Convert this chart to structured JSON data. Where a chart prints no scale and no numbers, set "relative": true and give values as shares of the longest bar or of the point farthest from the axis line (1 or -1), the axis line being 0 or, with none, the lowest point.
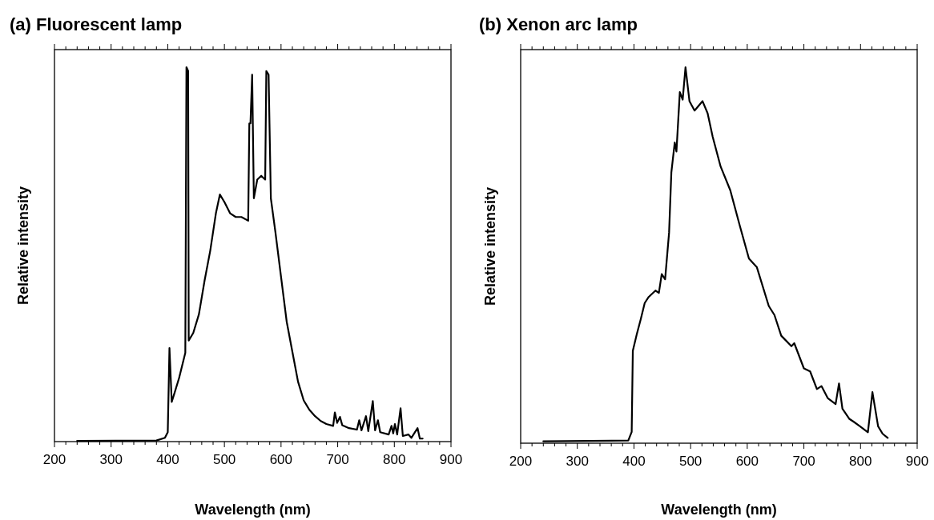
{
  "chart_data": [
    {
      "type": "line",
      "title": "(a) Fluorescent lamp",
      "xlabel": "Wavelength (nm)",
      "ylabel": "Relative intensity",
      "relative": true,
      "xlim": [
        200,
        900
      ],
      "xticks": [
        200,
        {
          "value": 220,
          "label": null
        },
        {
          "value": 240,
          "label": null
        },
        {
          "value": 260,
          "label": null
        },
        {
          "value": 280,
          "label": null
        },
        300,
        {
          "value": 320,
          "label": null
        },
        {
          "value": 340,
          "label": null
        },
        {
          "value": 360,
          "label": null
        },
        {
          "value": 380,
          "label": null
        },
        400,
        {
          "value": 420,
          "label": null
        },
        {
          "value": 440,
          "label": null
        },
        {
          "value": 460,
          "label": null
        },
        {
          "value": 480,
          "label": null
        },
        500,
        {
          "value": 520,
          "label": null
        },
        {
          "value": 540,
          "label": null
        },
        {
          "value": 560,
          "label": null
        },
        {
          "value": 580,
          "label": null
        },
        600,
        {
          "value": 620,
          "label": null
        },
        {
          "value": 640,
          "label": null
        },
        {
          "value": 660,
          "label": null
        },
        {
          "value": 680,
          "label": null
        },
        700,
        {
          "value": 720,
          "label": null
        },
        {
          "value": 740,
          "label": null
        },
        {
          "value": 760,
          "label": null
        },
        {
          "value": 780,
          "label": null
        },
        800,
        {
          "value": 820,
          "label": null
        },
        {
          "value": 840,
          "label": null
        },
        {
          "value": 860,
          "label": null
        },
        {
          "value": 880,
          "label": null
        },
        900
      ],
      "series": [
        {
          "color": "#000000",
          "x": [
            240,
            380,
            395,
            400,
            403,
            407,
            412,
            420,
            431,
            433,
            436,
            437,
            445,
            455,
            465,
            475,
            485,
            492,
            500,
            510,
            520,
            530,
            542,
            544,
            546,
            549,
            552,
            558,
            565,
            572,
            574,
            578,
            582,
            590,
            600,
            610,
            620,
            630,
            640,
            650,
            660,
            670,
            680,
            692,
            695,
            699,
            704,
            708,
            720,
            734,
            738,
            742,
            750,
            754,
            762,
            766,
            771,
            775,
            790,
            795,
            798,
            801,
            805,
            811,
            815,
            825,
            830,
            841,
            845,
            850
          ],
          "values": [
            0.002,
            0.003,
            0.01,
            0.025,
            0.25,
            0.106,
            0.13,
            0.17,
            0.237,
            1.0,
            0.99,
            0.27,
            0.29,
            0.34,
            0.43,
            0.51,
            0.61,
            0.66,
            0.64,
            0.61,
            0.6,
            0.6,
            0.59,
            0.85,
            0.85,
            0.98,
            0.65,
            0.7,
            0.71,
            0.7,
            0.99,
            0.98,
            0.65,
            0.56,
            0.44,
            0.32,
            0.24,
            0.16,
            0.11,
            0.085,
            0.068,
            0.055,
            0.047,
            0.042,
            0.078,
            0.05,
            0.066,
            0.044,
            0.036,
            0.032,
            0.057,
            0.03,
            0.068,
            0.028,
            0.108,
            0.03,
            0.057,
            0.025,
            0.019,
            0.042,
            0.022,
            0.047,
            0.019,
            0.089,
            0.015,
            0.019,
            0.01,
            0.036,
            0.008,
            0.008
          ]
        }
      ]
    },
    {
      "type": "line",
      "title": "(b) Xenon arc lamp",
      "xlabel": "Wavelength (nm)",
      "ylabel": "Relative intensity",
      "relative": true,
      "xlim": [
        200,
        900
      ],
      "xticks": [
        200,
        {
          "value": 220,
          "label": null
        },
        {
          "value": 240,
          "label": null
        },
        {
          "value": 260,
          "label": null
        },
        {
          "value": 280,
          "label": null
        },
        300,
        {
          "value": 320,
          "label": null
        },
        {
          "value": 340,
          "label": null
        },
        {
          "value": 360,
          "label": null
        },
        {
          "value": 380,
          "label": null
        },
        400,
        {
          "value": 420,
          "label": null
        },
        {
          "value": 440,
          "label": null
        },
        {
          "value": 460,
          "label": null
        },
        {
          "value": 480,
          "label": null
        },
        500,
        {
          "value": 520,
          "label": null
        },
        {
          "value": 540,
          "label": null
        },
        {
          "value": 560,
          "label": null
        },
        {
          "value": 580,
          "label": null
        },
        600,
        {
          "value": 620,
          "label": null
        },
        {
          "value": 640,
          "label": null
        },
        {
          "value": 660,
          "label": null
        },
        {
          "value": 680,
          "label": null
        },
        700,
        {
          "value": 720,
          "label": null
        },
        {
          "value": 740,
          "label": null
        },
        {
          "value": 760,
          "label": null
        },
        {
          "value": 780,
          "label": null
        },
        800,
        {
          "value": 820,
          "label": null
        },
        {
          "value": 840,
          "label": null
        },
        {
          "value": 860,
          "label": null
        },
        {
          "value": 880,
          "label": null
        },
        900
      ],
      "series": [
        {
          "color": "#000000",
          "x": [
            240,
            390,
            396,
            398,
            405,
            412,
            419,
            426,
            438,
            444,
            449,
            455,
            462,
            466,
            472,
            475,
            481,
            486,
            491,
            498,
            507,
            521,
            530,
            539,
            553,
            570,
            587,
            603,
            617,
            638,
            648,
            660,
            678,
            683,
            700,
            711,
            723,
            731,
            742,
            756,
            762,
            768,
            780,
            787,
            799,
            813,
            821,
            831,
            839,
            848
          ],
          "values": [
            0.005,
            0.007,
            0.03,
            0.246,
            0.29,
            0.33,
            0.373,
            0.389,
            0.406,
            0.4,
            0.45,
            0.436,
            0.56,
            0.72,
            0.8,
            0.776,
            0.934,
            0.914,
            1.0,
            0.91,
            0.885,
            0.91,
            0.878,
            0.815,
            0.736,
            0.673,
            0.578,
            0.491,
            0.468,
            0.365,
            0.341,
            0.286,
            0.258,
            0.266,
            0.199,
            0.191,
            0.144,
            0.152,
            0.12,
            0.104,
            0.159,
            0.092,
            0.065,
            0.058,
            0.045,
            0.029,
            0.136,
            0.045,
            0.025,
            0.014
          ]
        }
      ]
    }
  ]
}
